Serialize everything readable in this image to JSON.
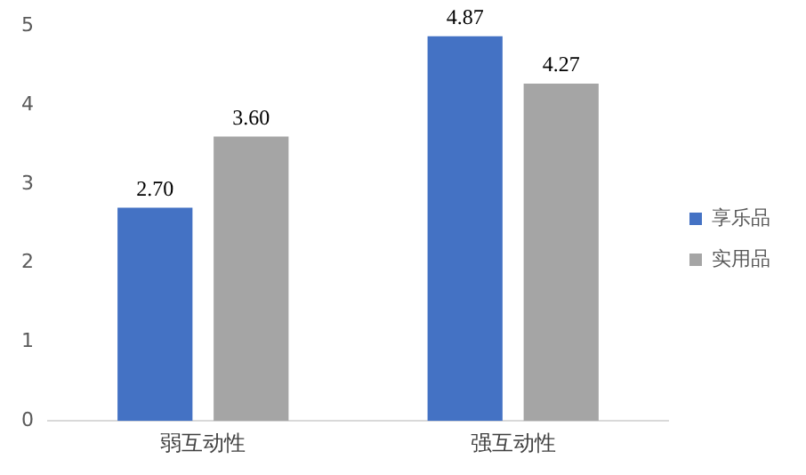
{
  "chart_data": {
    "type": "bar",
    "categories": [
      "弱互动性",
      "强互动性"
    ],
    "series": [
      {
        "name": "享乐品",
        "color": "#4472c4",
        "values": [
          2.7,
          4.87
        ],
        "value_labels": [
          "2.70",
          "4.87"
        ]
      },
      {
        "name": "实用品",
        "color": "#a5a5a5",
        "values": [
          3.6,
          4.27
        ],
        "value_labels": [
          "3.60",
          "4.27"
        ]
      }
    ],
    "ylim": [
      0,
      5
    ],
    "yticks": [
      0,
      1,
      2,
      3,
      4,
      5
    ],
    "grid": false,
    "legend": "right"
  }
}
